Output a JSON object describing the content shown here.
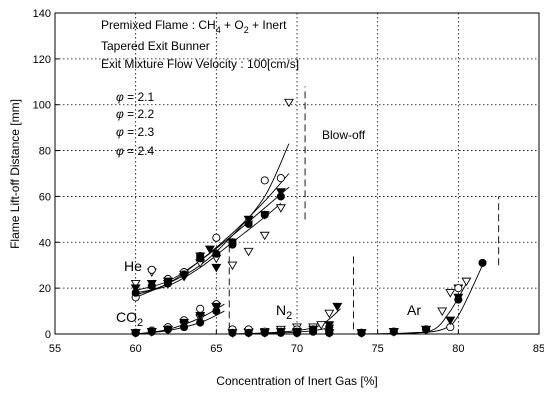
{
  "chart_data": {
    "type": "scatter",
    "xlabel": "Concentration of Inert Gas [%]",
    "ylabel": "Flame Lift-off Distance [mm]",
    "xlim": [
      55,
      85
    ],
    "ylim": [
      0,
      140
    ],
    "xticks": [
      "55",
      "60",
      "65",
      "70",
      "75",
      "80",
      "85"
    ],
    "yticks": [
      "0",
      "20",
      "40",
      "60",
      "80",
      "100",
      "120",
      "140"
    ],
    "grid": true,
    "conditions": {
      "prefix": "Premixed Flame : CH",
      "sub1": "4",
      "mid": " + O",
      "sub2": "2",
      "suffix": " + Inert",
      "line2": "Tapered Exit Bunner",
      "line3": "Exit Mixture Flow Velocity : 100[cm/s]"
    },
    "legend": [
      {
        "phi": "φ",
        "text": " = 2.1",
        "marker": "tri-down-open"
      },
      {
        "phi": "φ",
        "text": " = 2.2",
        "marker": "circle-open"
      },
      {
        "phi": "φ",
        "text": " = 2.3",
        "marker": "tri-down-filled"
      },
      {
        "phi": "φ",
        "text": " = 2.4",
        "marker": "circle-filled"
      }
    ],
    "annotations": {
      "blowoff": "Blow-off",
      "he": "He",
      "co2_main": "CO",
      "co2_sub": "2",
      "n2_main": "N",
      "n2_sub": "2",
      "ar": "Ar"
    },
    "gases": [
      {
        "name": "He",
        "blowoff_x": 70.5,
        "blowoff_y": [
          50,
          108
        ],
        "series": [
          {
            "marker": "tri-down-open",
            "points": [
              [
                60,
                22
              ],
              [
                61,
                27
              ],
              [
                62,
                22
              ],
              [
                63,
                26
              ],
              [
                64,
                31
              ],
              [
                65,
                33
              ],
              [
                66,
                30
              ],
              [
                67,
                36
              ],
              [
                68,
                43
              ],
              [
                69,
                55
              ],
              [
                69.5,
                101
              ]
            ]
          },
          {
            "marker": "circle-open",
            "points": [
              [
                60,
                16
              ],
              [
                61,
                28
              ],
              [
                62,
                24
              ],
              [
                63,
                27
              ],
              [
                64,
                34
              ],
              [
                65,
                42
              ],
              [
                66,
                40
              ],
              [
                67,
                49
              ],
              [
                68,
                67
              ],
              [
                69,
                68
              ]
            ]
          },
          {
            "marker": "tri-down-filled",
            "points": [
              [
                60,
                20
              ],
              [
                61,
                22
              ],
              [
                62,
                23
              ],
              [
                63,
                25
              ],
              [
                64,
                34
              ],
              [
                64.6,
                37
              ],
              [
                65,
                29
              ],
              [
                66,
                40
              ],
              [
                67,
                50
              ],
              [
                68,
                52
              ],
              [
                69,
                62
              ]
            ]
          },
          {
            "marker": "circle-filled",
            "points": [
              [
                60,
                18
              ],
              [
                61,
                21
              ],
              [
                62,
                22
              ],
              [
                63,
                26
              ],
              [
                64,
                33
              ],
              [
                65,
                35
              ],
              [
                66,
                39
              ],
              [
                67,
                48
              ],
              [
                68,
                52
              ],
              [
                69,
                60
              ]
            ]
          }
        ],
        "fits": [
          [
            [
              60,
              16
            ],
            [
              62,
              22
            ],
            [
              64,
              30
            ],
            [
              66,
              43
            ],
            [
              68,
              60
            ],
            [
              69.5,
              83
            ]
          ],
          [
            [
              60,
              17
            ],
            [
              62,
              22
            ],
            [
              64,
              32
            ],
            [
              66,
              44
            ],
            [
              68,
              58
            ],
            [
              69.5,
              70
            ]
          ],
          [
            [
              60,
              19
            ],
            [
              62,
              23
            ],
            [
              64,
              32
            ],
            [
              66,
              43
            ],
            [
              68,
              55
            ],
            [
              69.5,
              64
            ]
          ],
          [
            [
              60,
              18
            ],
            [
              62,
              21
            ],
            [
              64,
              29
            ],
            [
              66,
              40
            ],
            [
              68,
              51
            ],
            [
              69,
              57
            ]
          ]
        ]
      },
      {
        "name": "CO2",
        "blowoff_x": 65.8,
        "blowoff_y": [
          2,
          42
        ],
        "series": [
          {
            "marker": "tri-down-open",
            "points": [
              [
                60,
                0.5
              ],
              [
                61,
                1
              ],
              [
                62,
                2
              ],
              [
                63,
                4
              ],
              [
                64,
                7
              ],
              [
                65,
                12
              ]
            ]
          },
          {
            "marker": "circle-open",
            "points": [
              [
                60,
                0.5
              ],
              [
                61,
                1.5
              ],
              [
                62,
                3
              ],
              [
                63,
                6
              ],
              [
                64,
                11
              ],
              [
                65,
                13
              ]
            ]
          },
          {
            "marker": "tri-down-filled",
            "points": [
              [
                60,
                0.5
              ],
              [
                61,
                1
              ],
              [
                62,
                2
              ],
              [
                63,
                5
              ],
              [
                64,
                8
              ],
              [
                65,
                12
              ]
            ]
          },
          {
            "marker": "circle-filled",
            "points": [
              [
                60,
                0.5
              ],
              [
                61,
                1
              ],
              [
                62,
                2
              ],
              [
                63,
                3
              ],
              [
                64,
                5
              ],
              [
                65,
                10
              ]
            ]
          }
        ],
        "fits": [
          [
            [
              60,
              0
            ],
            [
              62,
              2
            ],
            [
              64,
              7
            ],
            [
              65.5,
              13
            ]
          ],
          [
            [
              60,
              0
            ],
            [
              62,
              1.5
            ],
            [
              64,
              5
            ],
            [
              65.5,
              10
            ]
          ]
        ]
      },
      {
        "name": "N2",
        "blowoff_x": 73.5,
        "blowoff_y": [
          2,
          35
        ],
        "series": [
          {
            "marker": "tri-down-open",
            "points": [
              [
                66,
                0.5
              ],
              [
                67,
                1
              ],
              [
                68,
                1
              ],
              [
                69,
                2
              ],
              [
                70,
                3
              ],
              [
                71,
                3
              ],
              [
                71.5,
                4
              ],
              [
                72,
                9
              ]
            ]
          },
          {
            "marker": "circle-open",
            "points": [
              [
                66,
                2
              ],
              [
                67,
                2
              ],
              [
                68,
                1
              ],
              [
                69,
                1
              ],
              [
                70,
                2
              ],
              [
                71,
                2
              ]
            ]
          },
          {
            "marker": "tri-down-filled",
            "points": [
              [
                66,
                0.5
              ],
              [
                67,
                0.5
              ],
              [
                68,
                0.5
              ],
              [
                69,
                1
              ],
              [
                70,
                1
              ],
              [
                71,
                2
              ],
              [
                72,
                4
              ],
              [
                72.5,
                12
              ]
            ]
          },
          {
            "marker": "circle-filled",
            "points": [
              [
                66,
                0.5
              ],
              [
                67,
                0.5
              ],
              [
                68,
                0.5
              ],
              [
                69,
                0.5
              ],
              [
                70,
                1
              ],
              [
                71,
                1
              ],
              [
                72,
                3
              ]
            ]
          }
        ],
        "fits": [
          [
            [
              66,
              0
            ],
            [
              68,
              0.5
            ],
            [
              70,
              1.5
            ],
            [
              71.5,
              4
            ],
            [
              72.7,
              11
            ]
          ],
          [
            [
              66,
              0
            ],
            [
              68,
              0.3
            ],
            [
              70,
              0.8
            ],
            [
              71.5,
              2
            ],
            [
              72.3,
              4
            ]
          ]
        ]
      },
      {
        "name": "Ar",
        "blowoff_x": 82.5,
        "blowoff_y": [
          30,
          60
        ],
        "series": [
          {
            "marker": "tri-down-open",
            "points": [
              [
                70,
                0.5
              ],
              [
                72,
                0.5
              ],
              [
                74,
                0.5
              ],
              [
                76,
                1
              ],
              [
                78,
                2
              ],
              [
                79,
                10
              ],
              [
                79.5,
                18
              ],
              [
                80,
                20
              ],
              [
                80.5,
                23
              ]
            ]
          },
          {
            "marker": "circle-open",
            "points": [
              [
                70,
                0.5
              ],
              [
                72,
                0.5
              ],
              [
                74,
                0.5
              ],
              [
                76,
                1
              ],
              [
                78,
                2
              ],
              [
                79.5,
                3
              ],
              [
                80,
                20
              ]
            ]
          },
          {
            "marker": "tri-down-filled",
            "points": [
              [
                70,
                0.5
              ],
              [
                72,
                0.5
              ],
              [
                74,
                0.5
              ],
              [
                76,
                1
              ],
              [
                78,
                2
              ],
              [
                79.5,
                6
              ],
              [
                80,
                16
              ]
            ]
          },
          {
            "marker": "circle-filled",
            "points": [
              [
                70,
                0.5
              ],
              [
                72,
                0.5
              ],
              [
                74,
                0.5
              ],
              [
                76,
                1
              ],
              [
                78,
                2
              ],
              [
                80,
                15
              ],
              [
                81.5,
                31
              ]
            ]
          }
        ],
        "fits": [
          [
            [
              74,
              0
            ],
            [
              77,
              0.5
            ],
            [
              78.5,
              2
            ],
            [
              79.5,
              10
            ],
            [
              80.5,
              22
            ]
          ],
          [
            [
              74,
              0
            ],
            [
              77,
              0.3
            ],
            [
              79,
              2
            ],
            [
              80,
              8
            ],
            [
              81.5,
              30
            ]
          ]
        ]
      }
    ]
  }
}
